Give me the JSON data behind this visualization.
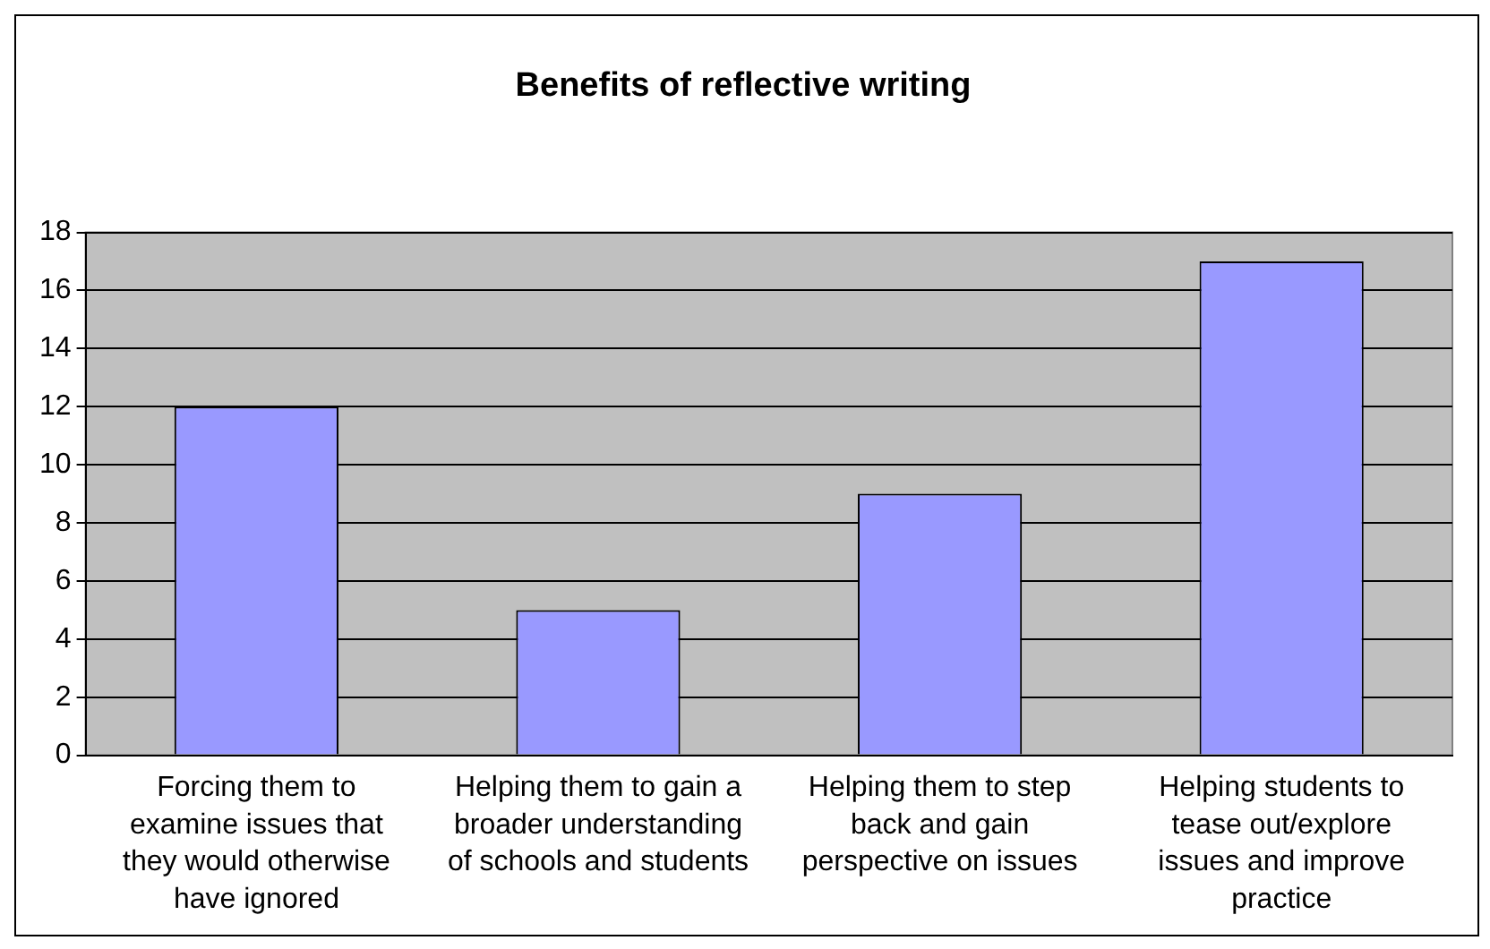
{
  "chart_data": {
    "type": "bar",
    "title": "Benefits of reflective writing",
    "categories": [
      "Forcing them to examine issues that they would otherwise have ignored",
      "Helping them to gain a broader understanding of schools and students",
      "Helping them to step back and gain perspective on issues",
      "Helping students to tease out/explore issues and improve practice"
    ],
    "values": [
      12,
      5,
      9,
      17
    ],
    "color": "#9999ff",
    "ylim": [
      0,
      18
    ],
    "yticks": [
      0,
      2,
      4,
      6,
      8,
      10,
      12,
      14,
      16,
      18
    ],
    "grid": "y",
    "legend": false
  }
}
